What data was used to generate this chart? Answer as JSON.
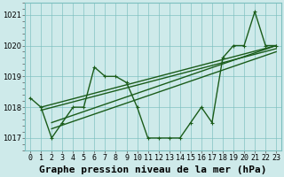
{
  "title": "Graphe pression niveau de la mer (hPa)",
  "bg_color": "#ceeaea",
  "line_color": "#1a5c1a",
  "grid_color": "#7bbfbf",
  "ylim": [
    1016.6,
    1021.4
  ],
  "xlim": [
    -0.5,
    23.5
  ],
  "yticks": [
    1017,
    1018,
    1019,
    1020,
    1021
  ],
  "xtick_labels": [
    "0",
    "1",
    "2",
    "3",
    "4",
    "5",
    "6",
    "7",
    "8",
    "9",
    "10",
    "11",
    "12",
    "13",
    "14",
    "15",
    "16",
    "17",
    "18",
    "19",
    "20",
    "21",
    "22",
    "23"
  ],
  "main_series": [
    1018.3,
    1018.0,
    1017.0,
    1017.5,
    1018.0,
    1018.0,
    1019.3,
    1019.0,
    1019.0,
    1018.8,
    1018.0,
    1017.0,
    1017.0,
    1017.0,
    1017.0,
    1017.5,
    1018.0,
    1017.5,
    1019.6,
    1020.0,
    1020.0,
    1021.1,
    1020.0,
    1020.0
  ],
  "trend1_x": [
    1,
    23
  ],
  "trend1_y": [
    1018.0,
    1020.0
  ],
  "trend2_x": [
    2,
    23
  ],
  "trend2_y": [
    1017.5,
    1020.0
  ],
  "trend3_x": [
    2,
    23
  ],
  "trend3_y": [
    1017.3,
    1019.8
  ],
  "trend4_x": [
    1,
    23
  ],
  "trend4_y": [
    1017.9,
    1019.9
  ],
  "marker_size": 2.5,
  "linewidth": 1.0,
  "fontsize_label": 8,
  "fontsize_tick": 6
}
